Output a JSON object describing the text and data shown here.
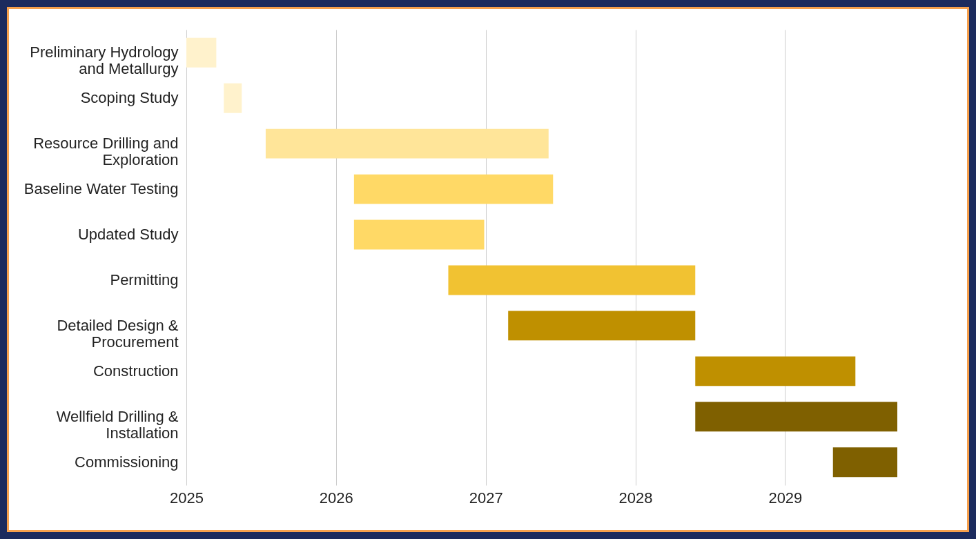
{
  "chart_data": {
    "type": "bar",
    "orientation": "horizontal",
    "categories": [
      "Preliminary Hydrology and Metallurgy",
      "Scoping Study",
      "Resource Drilling and Exploration",
      "Baseline Water Testing",
      "Updated Study",
      "Permitting",
      "Detailed Design & Procurement",
      "Construction",
      "Wellfield Drilling & Installation",
      "Commissioning"
    ],
    "base": [
      2025,
      2025.25,
      2025.53,
      2026.12,
      2026.12,
      2026.75,
      2027.15,
      2028.4,
      2028.4,
      2029.32
    ],
    "values": [
      0.2,
      0.12,
      1.89,
      1.33,
      0.87,
      1.65,
      1.25,
      1.07,
      1.35,
      0.43
    ],
    "colors": [
      "#fff2cc",
      "#fff2cc",
      "#ffe599",
      "#ffd966",
      "#ffd966",
      "#f1c232",
      "#bf9000",
      "#bf9000",
      "#7f6000",
      "#7f6000"
    ],
    "xlim": [
      2025,
      2029.75
    ],
    "xticks": [
      2025,
      2026,
      2027,
      2028,
      2029
    ],
    "grid": "x"
  }
}
